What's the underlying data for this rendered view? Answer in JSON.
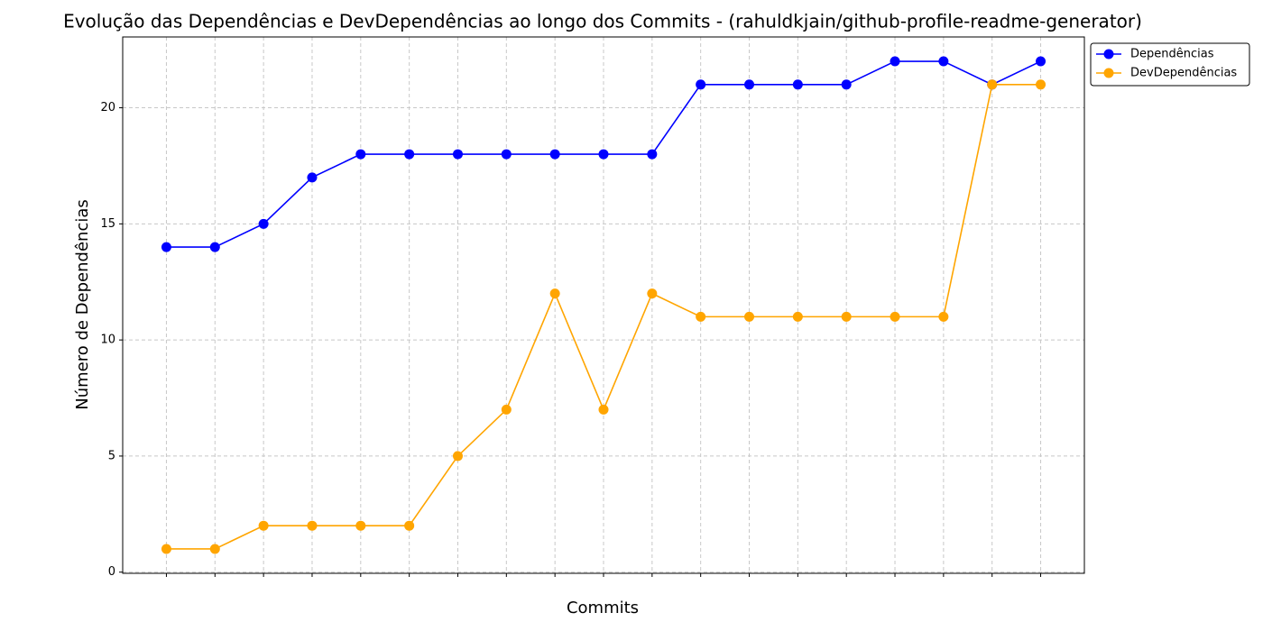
{
  "chart_data": {
    "type": "line",
    "title": "Evolução das Dependências e DevDependências ao longo dos Commits - (rahuldkjain/github-profile-readme-generator)",
    "xlabel": "Commits",
    "ylabel": "Número de Dependências",
    "categories": [
      null,
      null,
      null,
      null,
      null,
      null,
      null,
      null,
      null,
      null,
      null,
      null,
      null,
      null,
      null,
      null,
      null,
      null,
      null
    ],
    "series": [
      {
        "name": "Dependências",
        "color": "#0000ff",
        "values": [
          14,
          14,
          15,
          17,
          18,
          18,
          18,
          18,
          18,
          18,
          18,
          21,
          21,
          21,
          21,
          22,
          22,
          21,
          22
        ]
      },
      {
        "name": "DevDependências",
        "color": "#ffa500",
        "values": [
          1,
          1,
          2,
          2,
          2,
          2,
          5,
          7,
          12,
          7,
          12,
          11,
          11,
          11,
          11,
          11,
          11,
          21,
          21
        ]
      }
    ],
    "xlim": [
      -0.9,
      18.9
    ],
    "ylim": [
      -0.05,
      23.05
    ],
    "yticks": [
      0,
      5,
      10,
      15,
      20
    ],
    "grid": true,
    "legend": "outside-upper-right"
  }
}
